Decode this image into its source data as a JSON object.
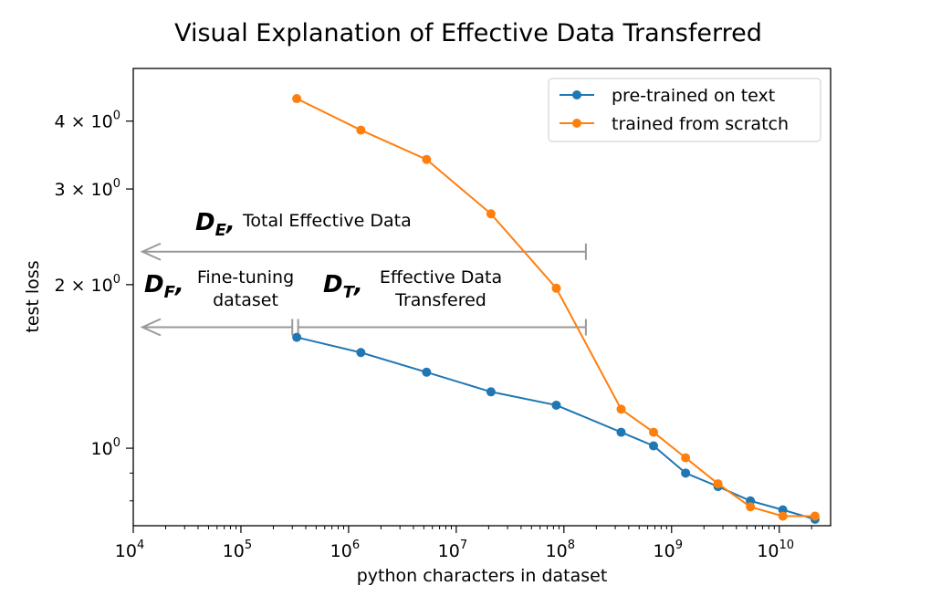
{
  "chart_data": {
    "type": "line",
    "title": "Visual Explanation of Effective Data Transferred",
    "xlabel": "python characters in dataset",
    "ylabel": "test loss",
    "xscale": "log",
    "yscale": "log",
    "xlim": [
      10000,
      30000000000
    ],
    "ylim": [
      0.72,
      5.0
    ],
    "x_ticks": [
      {
        "value": 10000,
        "base": "10",
        "exp": "4"
      },
      {
        "value": 100000,
        "base": "10",
        "exp": "5"
      },
      {
        "value": 1000000,
        "base": "10",
        "exp": "6"
      },
      {
        "value": 10000000,
        "base": "10",
        "exp": "7"
      },
      {
        "value": 100000000,
        "base": "10",
        "exp": "8"
      },
      {
        "value": 1000000000,
        "base": "10",
        "exp": "9"
      },
      {
        "value": 10000000000,
        "base": "10",
        "exp": "10"
      }
    ],
    "y_ticks": [
      {
        "value": 1,
        "mant": "",
        "base": "10",
        "exp": "0"
      },
      {
        "value": 2,
        "mant": "2 × ",
        "base": "10",
        "exp": "0"
      },
      {
        "value": 3,
        "mant": "3 × ",
        "base": "10",
        "exp": "0"
      },
      {
        "value": 4,
        "mant": "4 × ",
        "base": "10",
        "exp": "0"
      }
    ],
    "series": [
      {
        "name": "pre-trained on text",
        "color": "#1f77b4",
        "x": [
          330000,
          1300000,
          5300000,
          21000000,
          85000000,
          340000000,
          680000000,
          1350000000,
          2700000000,
          5400000000,
          10800000000,
          21500000000
        ],
        "y": [
          1.6,
          1.5,
          1.38,
          1.27,
          1.2,
          1.07,
          1.01,
          0.9,
          0.85,
          0.8,
          0.77,
          0.74
        ]
      },
      {
        "name": "trained from scratch",
        "color": "#ff7f0e",
        "x": [
          330000,
          1300000,
          5300000,
          21000000,
          85000000,
          340000000,
          680000000,
          1350000000,
          2700000000,
          5400000000,
          10800000000,
          21500000000
        ],
        "y": [
          4.4,
          3.85,
          3.4,
          2.7,
          1.97,
          1.18,
          1.07,
          0.96,
          0.86,
          0.78,
          0.75,
          0.75
        ]
      }
    ],
    "legend_position": "top-right",
    "annotations": [
      {
        "id": "de",
        "symbol": "D",
        "sub": "E",
        "text_lines": [
          "Total Effective Data"
        ],
        "x_start": 160000000,
        "x_end": 10000,
        "y": 2.3
      },
      {
        "id": "df",
        "symbol": "D",
        "sub": "F",
        "text_lines": [
          "Fine-tuning",
          "dataset"
        ],
        "x_start": 300000,
        "x_end": 10000,
        "y": 1.67
      },
      {
        "id": "dt",
        "symbol": "D",
        "sub": "T",
        "text_lines": [
          "Effective Data",
          "Transfered"
        ],
        "x_start": 340000,
        "x_end": 160000000,
        "y": 1.67
      }
    ],
    "annotation_color": "#999999"
  }
}
